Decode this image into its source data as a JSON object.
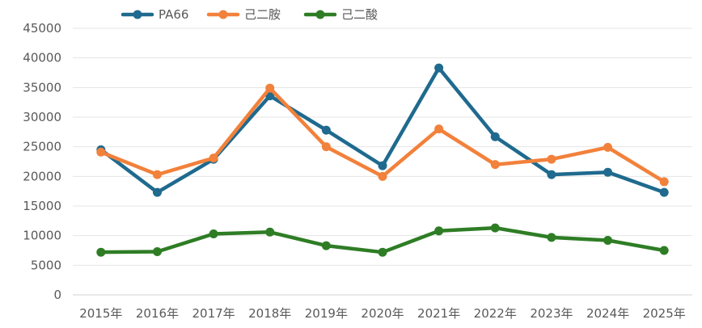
{
  "chart_data": {
    "type": "line",
    "title": "",
    "xlabel": "",
    "ylabel": "",
    "categories": [
      "2015年",
      "2016年",
      "2017年",
      "2018年",
      "2019年",
      "2020年",
      "2021年",
      "2022年",
      "2023年",
      "2024年",
      "2025年"
    ],
    "ylim": [
      0,
      45000
    ],
    "yticks": [
      0,
      5000,
      10000,
      15000,
      20000,
      25000,
      30000,
      35000,
      40000,
      45000
    ],
    "grid": true,
    "legend_position": "top-left",
    "series": [
      {
        "name": "PA66",
        "color": "#1f6a8e",
        "values": [
          24500,
          17300,
          22900,
          33600,
          27800,
          21800,
          38300,
          26700,
          20300,
          20700,
          17300
        ]
      },
      {
        "name": "己二胺",
        "color": "#f2813b",
        "values": [
          24100,
          20300,
          23100,
          34900,
          25000,
          20000,
          28000,
          22000,
          22900,
          24900,
          19100
        ]
      },
      {
        "name": "己二酸",
        "color": "#2e7d25",
        "values": [
          7200,
          7300,
          10300,
          10600,
          8300,
          7200,
          10800,
          11300,
          9700,
          9200,
          7500
        ]
      }
    ]
  }
}
